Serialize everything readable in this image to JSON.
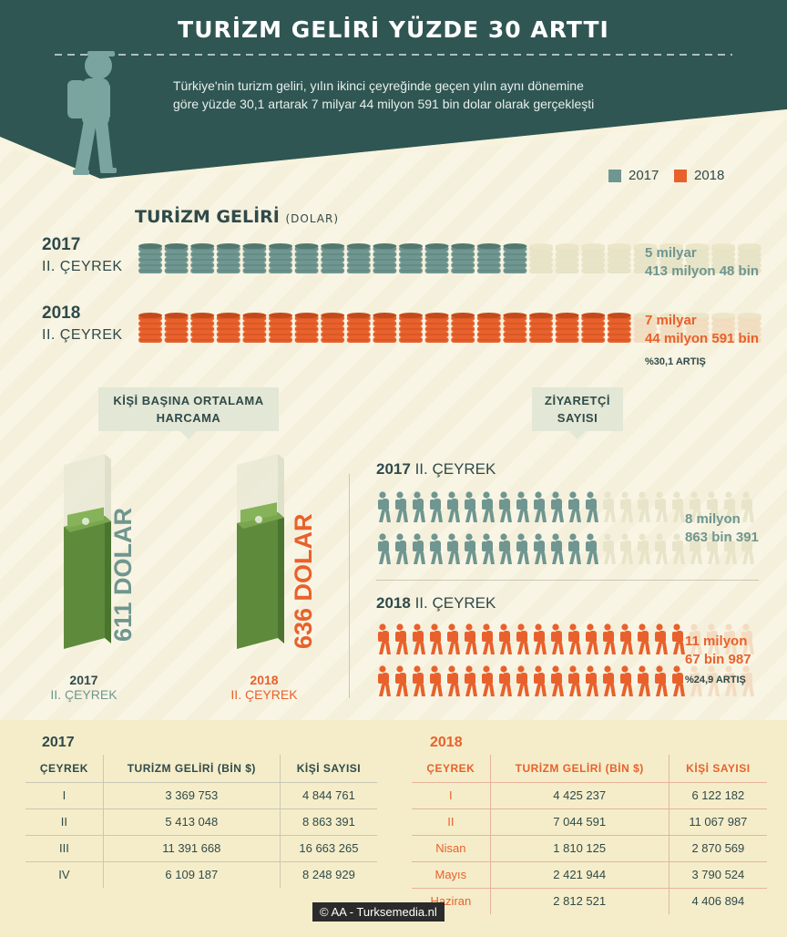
{
  "header": {
    "title": "TURİZM GELİRİ YÜZDE 30 ARTTI",
    "intro": "Türkiye'nin turizm geliri, yılın ikinci çeyreğinde geçen yılın aynı dönemine göre yüzde 30,1 artarak 7 milyar 44 milyon 591 bin dolar olarak gerçekleşti"
  },
  "legend": {
    "y2017": "2017",
    "y2018": "2018"
  },
  "colors": {
    "teal": "#6f9690",
    "orange": "#e8612c",
    "dark": "#2f4a4a",
    "bg": "#f8f3de"
  },
  "income": {
    "title": "TURİZM GELİRİ",
    "unit": "(DOLAR)",
    "row2017": {
      "year": "2017",
      "quarter": "II. ÇEYREK",
      "value_line1": "5 milyar",
      "value_line2": "413 milyon 48 bin",
      "stacks_full": 15,
      "stacks_total": 24
    },
    "row2018": {
      "year": "2018",
      "quarter": "II. ÇEYREK",
      "value_line1": "7 milyar",
      "value_line2": "44 milyon 591 bin",
      "stacks_full": 19,
      "stacks_total": 24,
      "increase": "%30,1 ARTIŞ"
    }
  },
  "spending": {
    "badge_line1": "KİŞİ BAŞINA ORTALAMA",
    "badge_line2": "HARCAMA",
    "p2017": {
      "value": "611 DOLAR",
      "year": "2017",
      "quarter": "II. ÇEYREK"
    },
    "p2018": {
      "value": "636 DOLAR",
      "year": "2018",
      "quarter": "II. ÇEYREK"
    }
  },
  "visitors": {
    "badge_line1": "ZİYARETÇİ",
    "badge_line2": "SAYISI",
    "v2017": {
      "year": "2017",
      "quarter": "II. ÇEYREK",
      "value_line1": "8 milyon",
      "value_line2": "863 bin 391",
      "people_full": 13,
      "people_total": 22
    },
    "v2018": {
      "year": "2018",
      "quarter": "II. ÇEYREK",
      "value_line1": "11 milyon",
      "value_line2": "67 bin 987",
      "people_full": 18,
      "people_total": 22,
      "increase": "%24,9 ARTIŞ"
    }
  },
  "table2017": {
    "title": "2017",
    "headers": [
      "ÇEYREK",
      "TURİZM GELİRİ (BİN $)",
      "KİŞİ SAYISI"
    ],
    "rows": [
      [
        "I",
        "3 369 753",
        "4 844 761"
      ],
      [
        "II",
        "5 413 048",
        "8 863 391"
      ],
      [
        "III",
        "11 391 668",
        "16 663 265"
      ],
      [
        "IV",
        "6 109 187",
        "8 248 929"
      ]
    ]
  },
  "table2018": {
    "title": "2018",
    "headers": [
      "ÇEYREK",
      "TURİZM GELİRİ (BİN $)",
      "KİŞİ SAYISI"
    ],
    "rows": [
      [
        "I",
        "4 425 237",
        "6 122 182"
      ],
      [
        "II",
        "7 044 591",
        "11 067 987"
      ],
      [
        "Nisan",
        "1 810 125",
        "2 870 569"
      ],
      [
        "Mayıs",
        "2 421 944",
        "3 790 524"
      ],
      [
        "Haziran",
        "2 812 521",
        "4 406 894"
      ]
    ]
  },
  "credit": "© AA - Turksemedia.nl"
}
